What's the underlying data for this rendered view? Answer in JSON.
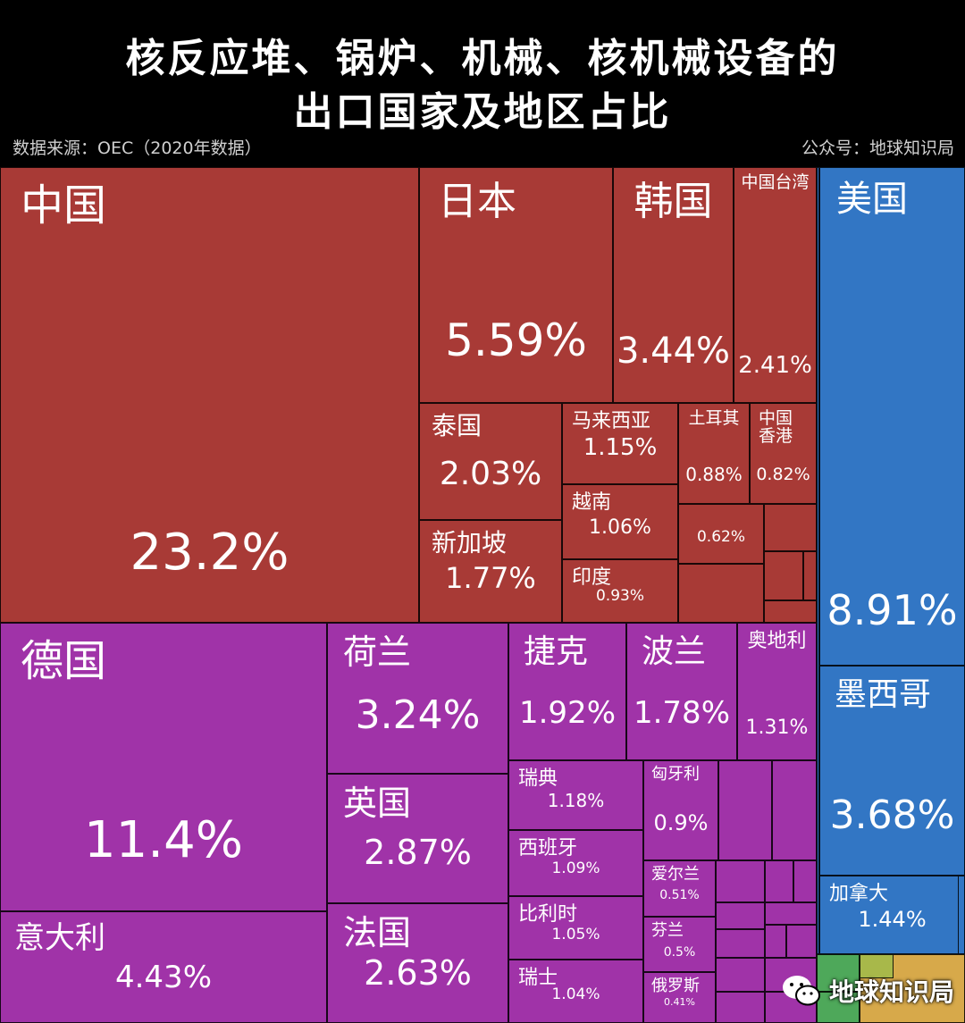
{
  "header": {
    "title_line1": "核反应堆、锅炉、机械、核机械设备的",
    "title_line2": "出口国家及地区占比",
    "source": "数据来源：OEC（2020年数据）",
    "publisher": "公众号：地球知识局"
  },
  "watermark": {
    "text": "地球知识局",
    "icon": "wechat-icon"
  },
  "colors": {
    "asia": "#a83a36",
    "europe": "#a033a8",
    "north_america": "#3276c4",
    "south_america": "#d7a94a",
    "africa": "#4ea85a",
    "oceania": "#a8b84a"
  },
  "chart_data": {
    "type": "treemap",
    "title": "核反应堆、锅炉、机械、核机械设备的出口国家及地区占比",
    "unit": "%",
    "groups": [
      {
        "group": "asia",
        "items": [
          {
            "label": "中国",
            "value": 23.2,
            "value_label": "23.2%"
          },
          {
            "label": "日本",
            "value": 5.59,
            "value_label": "5.59%"
          },
          {
            "label": "韩国",
            "value": 3.44,
            "value_label": "3.44%"
          },
          {
            "label": "中国台湾",
            "value": 2.41,
            "value_label": "2.41%"
          },
          {
            "label": "泰国",
            "value": 2.03,
            "value_label": "2.03%"
          },
          {
            "label": "新加坡",
            "value": 1.77,
            "value_label": "1.77%"
          },
          {
            "label": "马来西亚",
            "value": 1.15,
            "value_label": "1.15%"
          },
          {
            "label": "越南",
            "value": 1.06,
            "value_label": "1.06%"
          },
          {
            "label": "印度",
            "value": 0.93,
            "value_label": "0.93%"
          },
          {
            "label": "土耳其",
            "value": 0.88,
            "value_label": "0.88%"
          },
          {
            "label": "中国\n香港",
            "value": 0.82,
            "value_label": "0.82%"
          },
          {
            "label": "",
            "value": 0.62,
            "value_label": "0.62%"
          }
        ]
      },
      {
        "group": "europe",
        "items": [
          {
            "label": "德国",
            "value": 11.4,
            "value_label": "11.4%"
          },
          {
            "label": "意大利",
            "value": 4.43,
            "value_label": "4.43%"
          },
          {
            "label": "荷兰",
            "value": 3.24,
            "value_label": "3.24%"
          },
          {
            "label": "英国",
            "value": 2.87,
            "value_label": "2.87%"
          },
          {
            "label": "法国",
            "value": 2.63,
            "value_label": "2.63%"
          },
          {
            "label": "捷克",
            "value": 1.92,
            "value_label": "1.92%"
          },
          {
            "label": "波兰",
            "value": 1.78,
            "value_label": "1.78%"
          },
          {
            "label": "奥地利",
            "value": 1.31,
            "value_label": "1.31%"
          },
          {
            "label": "瑞典",
            "value": 1.18,
            "value_label": "1.18%"
          },
          {
            "label": "西班牙",
            "value": 1.09,
            "value_label": "1.09%"
          },
          {
            "label": "比利时",
            "value": 1.05,
            "value_label": "1.05%"
          },
          {
            "label": "瑞士",
            "value": 1.04,
            "value_label": "1.04%"
          },
          {
            "label": "匈牙利",
            "value": 0.9,
            "value_label": "0.9%"
          },
          {
            "label": "爱尔兰",
            "value": 0.51,
            "value_label": "0.51%"
          },
          {
            "label": "芬兰",
            "value": 0.5,
            "value_label": "0.5%"
          },
          {
            "label": "俄罗斯",
            "value": 0.41,
            "value_label": "0.41%"
          }
        ]
      },
      {
        "group": "north_america",
        "items": [
          {
            "label": "美国",
            "value": 8.91,
            "value_label": "8.91%"
          },
          {
            "label": "墨西哥",
            "value": 3.68,
            "value_label": "3.68%"
          },
          {
            "label": "加拿大",
            "value": 1.44,
            "value_label": "1.44%"
          }
        ]
      }
    ]
  }
}
